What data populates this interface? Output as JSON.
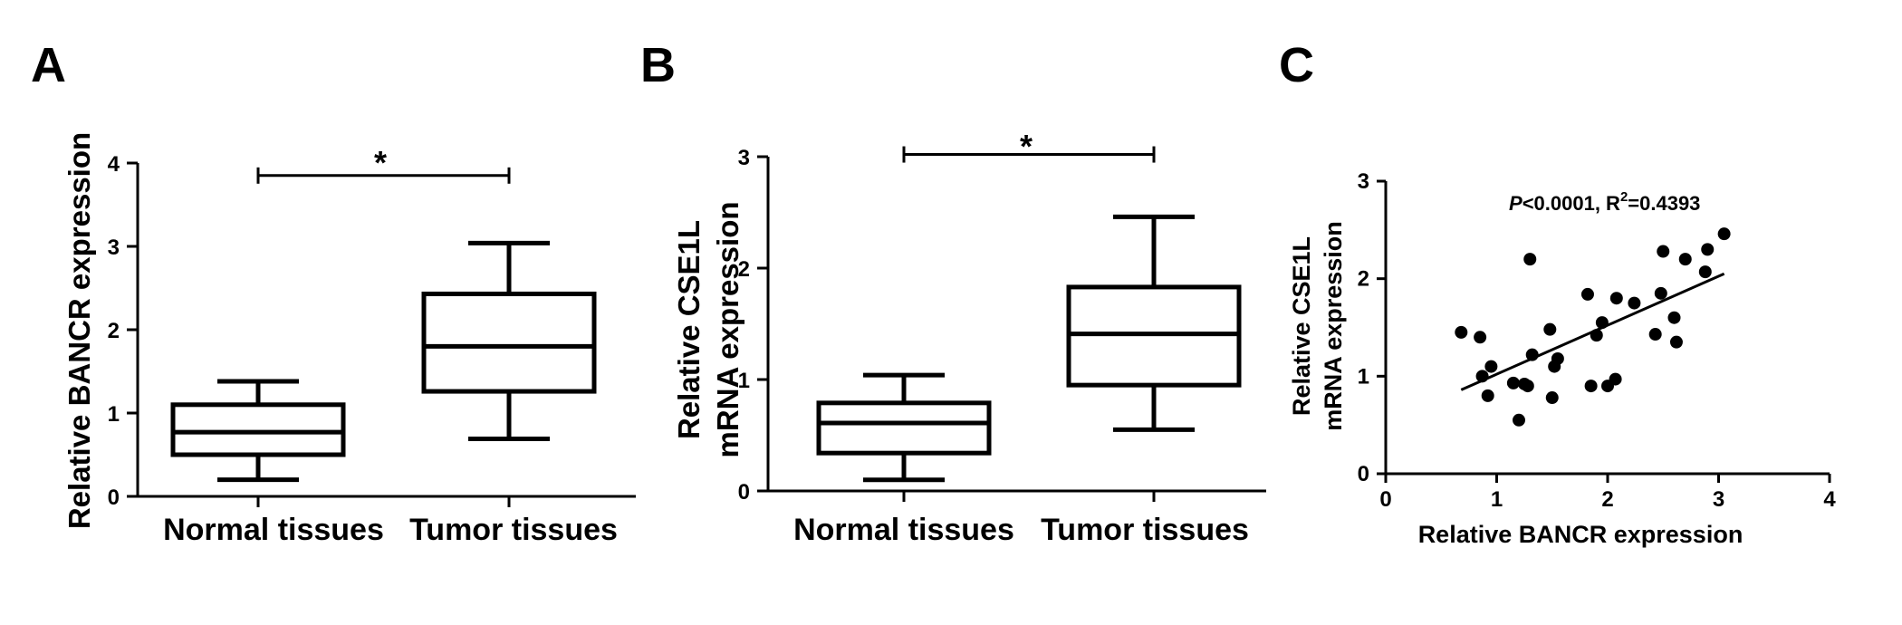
{
  "chart_data": [
    {
      "panel": "A",
      "type": "box",
      "categories": [
        "Normal tissues",
        "Tumor tissues"
      ],
      "boxes": [
        {
          "min": 0.2,
          "q1": 0.5,
          "median": 0.77,
          "q3": 1.1,
          "max": 1.38
        },
        {
          "min": 0.69,
          "q1": 1.26,
          "median": 1.8,
          "q3": 2.43,
          "max": 3.04
        }
      ],
      "ylabel": "Relative  BANCR expression",
      "ylim": [
        0,
        4
      ],
      "yticks": [
        "0",
        "1",
        "2",
        "3",
        "4"
      ],
      "significance": {
        "label": "*",
        "level": 3.85
      }
    },
    {
      "panel": "B",
      "type": "box",
      "categories": [
        "Normal tissues",
        "Tumor tissues"
      ],
      "boxes": [
        {
          "min": 0.1,
          "q1": 0.34,
          "median": 0.61,
          "q3": 0.79,
          "max": 1.04
        },
        {
          "min": 0.55,
          "q1": 0.95,
          "median": 1.41,
          "q3": 1.83,
          "max": 2.46
        }
      ],
      "ylabel_lines": [
        "Relative  CSE1L",
        "mRNA expression"
      ],
      "ylim": [
        0,
        3
      ],
      "yticks": [
        "0",
        "1",
        "2",
        "3"
      ],
      "significance": {
        "label": "*",
        "level": 3.02
      }
    },
    {
      "panel": "C",
      "type": "scatter",
      "points": [
        [
          0.68,
          1.45
        ],
        [
          0.85,
          1.4
        ],
        [
          0.87,
          1.0
        ],
        [
          0.92,
          0.8
        ],
        [
          0.95,
          1.1
        ],
        [
          1.15,
          0.93
        ],
        [
          1.2,
          0.55
        ],
        [
          1.25,
          0.92
        ],
        [
          1.28,
          0.9
        ],
        [
          1.3,
          2.2
        ],
        [
          1.32,
          1.22
        ],
        [
          1.48,
          1.48
        ],
        [
          1.5,
          0.78
        ],
        [
          1.52,
          1.1
        ],
        [
          1.55,
          1.18
        ],
        [
          1.82,
          1.84
        ],
        [
          1.85,
          0.9
        ],
        [
          1.9,
          1.42
        ],
        [
          1.95,
          1.55
        ],
        [
          2.0,
          0.9
        ],
        [
          2.07,
          0.97
        ],
        [
          2.08,
          1.8
        ],
        [
          2.24,
          1.75
        ],
        [
          2.43,
          1.43
        ],
        [
          2.48,
          1.85
        ],
        [
          2.5,
          2.28
        ],
        [
          2.6,
          1.6
        ],
        [
          2.62,
          1.35
        ],
        [
          2.7,
          2.2
        ],
        [
          2.88,
          2.07
        ],
        [
          2.9,
          2.3
        ],
        [
          3.05,
          2.46
        ]
      ],
      "fit_line": {
        "x": [
          0.68,
          3.05
        ],
        "y": [
          0.86,
          2.05
        ]
      },
      "xlabel": "Relative  BANCR expression",
      "ylabel_lines": [
        "Relative  CSE1L",
        "mRNA expression"
      ],
      "xlim": [
        0,
        4
      ],
      "ylim": [
        0,
        3
      ],
      "xticks": [
        "0",
        "1",
        "2",
        "3",
        "4"
      ],
      "yticks": [
        "0",
        "1",
        "2",
        "3"
      ],
      "stat": {
        "p_symbol": "P",
        "p_text": "<0.0001, R",
        "r_sup": "2",
        "r_text": "=0.4393"
      }
    }
  ]
}
